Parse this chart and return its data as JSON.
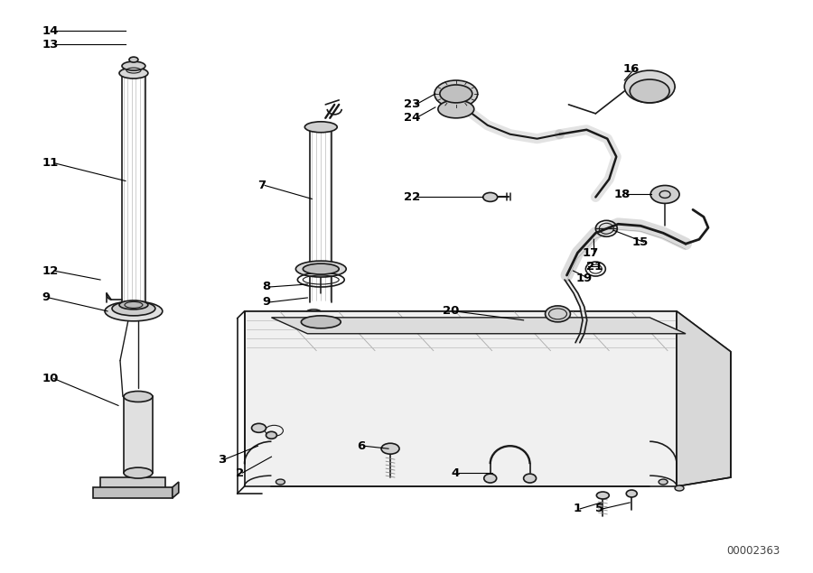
{
  "diagram_id": "00002363",
  "bg_color": "#ffffff",
  "line_color": "#1a1a1a",
  "text_color": "#000000",
  "figsize": [
    9.0,
    6.35
  ],
  "dpi": 100,
  "lw_thin": 0.8,
  "lw_med": 1.2,
  "lw_thick": 2.0
}
